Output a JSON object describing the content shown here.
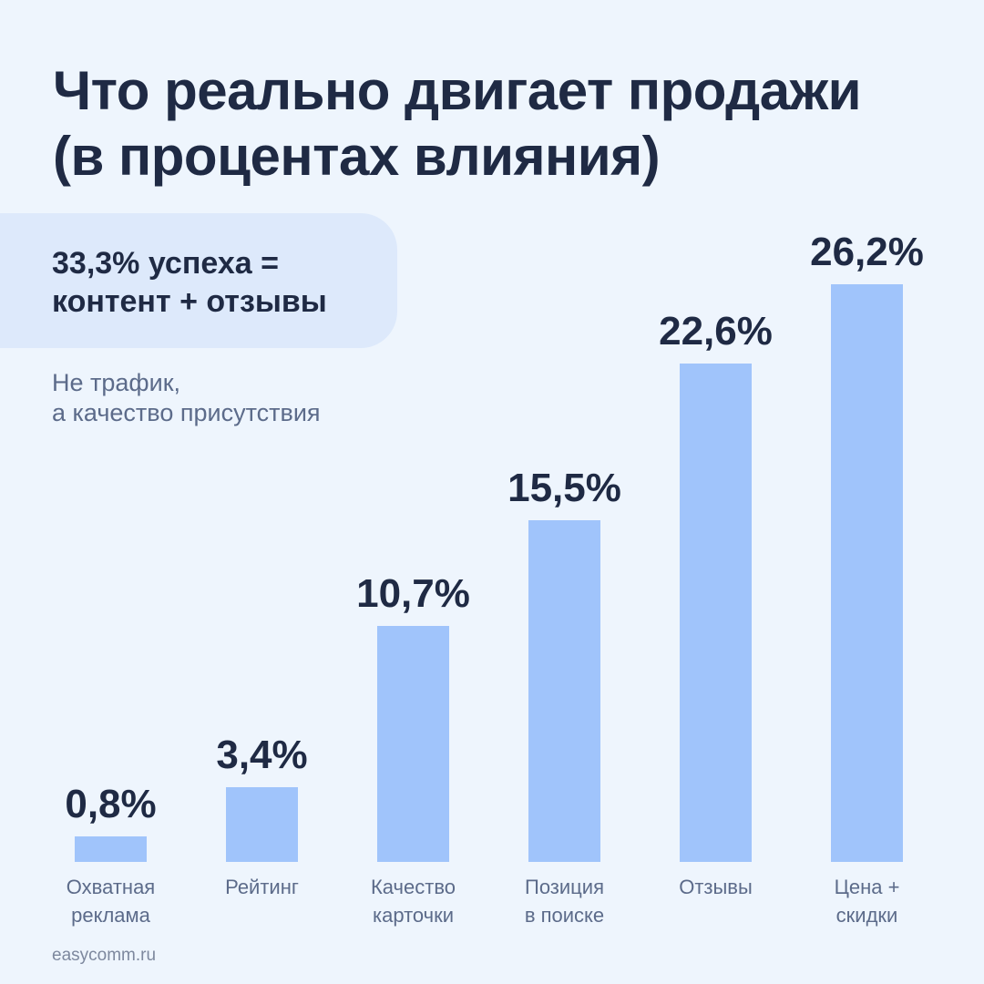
{
  "chart_data": {
    "type": "bar",
    "title": "Что реально двигает продажи (в процентах влияния)",
    "title_lines": [
      "Что реально двигает продажи",
      "(в процентах влияния)"
    ],
    "categories": [
      "Охватная реклама",
      "Рейтинг",
      "Качество карточки",
      "Позиция в поиске",
      "Отзывы",
      "Цена + скидки"
    ],
    "category_lines": [
      [
        "Охватная",
        "реклама"
      ],
      [
        "Рейтинг"
      ],
      [
        "Качество",
        "карточки"
      ],
      [
        "Позиция",
        "в поиске"
      ],
      [
        "Отзывы"
      ],
      [
        "Цена +",
        "скидки"
      ]
    ],
    "values": [
      0.8,
      3.4,
      10.7,
      15.5,
      22.6,
      26.2
    ],
    "data_labels": [
      "0,8%",
      "3,4%",
      "10,7%",
      "15,5%",
      "22,6%",
      "26,2%"
    ],
    "xlabel": "",
    "ylabel": "",
    "grid": false,
    "bar_color": "#a0c4fb"
  },
  "callout": {
    "lines": [
      "33,3% успеха =",
      "контент + отзывы"
    ]
  },
  "subtitle": {
    "lines": [
      "Не трафик,",
      "а качество присутствия"
    ]
  },
  "footer": "easycomm.ru"
}
